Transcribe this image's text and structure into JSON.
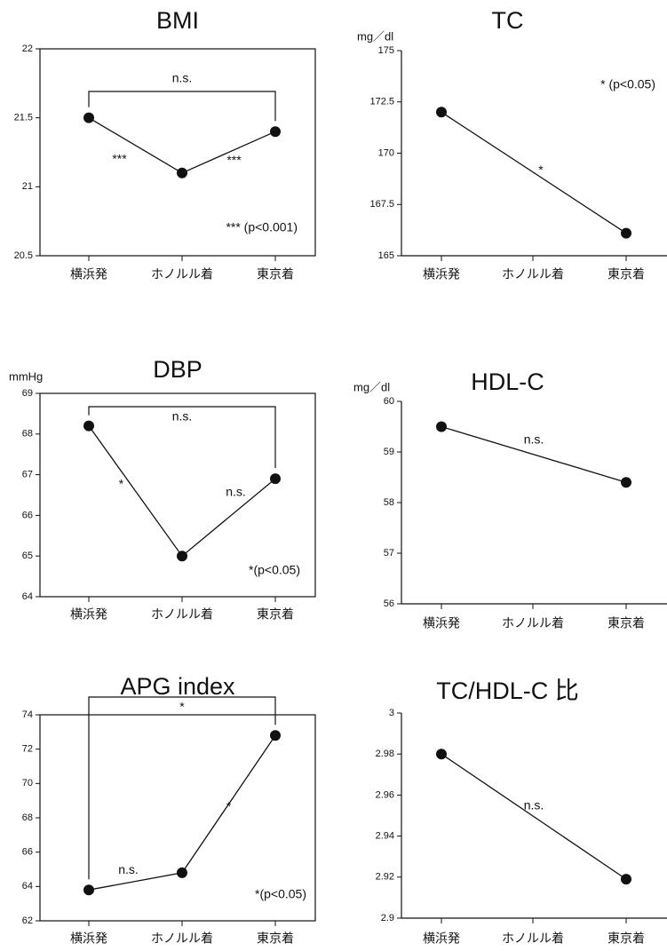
{
  "chart_data": [
    {
      "type": "line",
      "title": "BMI",
      "categories": [
        "横浜発",
        "ホノルル着",
        "東京着"
      ],
      "values": [
        21.5,
        21.1,
        21.4
      ],
      "ylim": [
        20.5,
        22
      ],
      "yticks": [
        20.5,
        21,
        21.5,
        22
      ],
      "color": "#111111",
      "bracket_label": "n.s.",
      "segment_labels": [
        "***",
        "***"
      ],
      "note": "*** (p<0.001)"
    },
    {
      "type": "line",
      "title": "TC",
      "y_label": "mg／dl",
      "categories": [
        "横浜発",
        "ホノルル着",
        "東京着"
      ],
      "values": [
        172,
        null,
        166.1
      ],
      "connect_gaps": true,
      "ylim": [
        165,
        175
      ],
      "yticks": [
        165,
        167.5,
        170,
        172.5,
        175
      ],
      "color": "#111111",
      "segment_labels": [
        "*"
      ],
      "note": "* (p<0.05)"
    },
    {
      "type": "line",
      "title": "DBP",
      "y_label": "mmHg",
      "categories": [
        "横浜発",
        "ホノルル着",
        "東京着"
      ],
      "values": [
        68.2,
        65,
        66.9
      ],
      "ylim": [
        64,
        69
      ],
      "yticks": [
        64,
        65,
        66,
        67,
        68,
        69
      ],
      "color": "#111111",
      "bracket_label": "n.s.",
      "segment_labels": [
        "*",
        "n.s."
      ],
      "note": "*(p<0.05)"
    },
    {
      "type": "line",
      "title": "HDL-C",
      "y_label": "mg／dl",
      "categories": [
        "横浜発",
        "ホノルル着",
        "東京着"
      ],
      "values": [
        59.5,
        null,
        58.4
      ],
      "connect_gaps": true,
      "ylim": [
        56,
        60
      ],
      "yticks": [
        56,
        57,
        58,
        59,
        60
      ],
      "color": "#111111",
      "segment_labels": [
        "n.s."
      ]
    },
    {
      "type": "line",
      "title": "APG index",
      "categories": [
        "横浜発",
        "ホノルル着",
        "東京着"
      ],
      "values": [
        63.8,
        64.8,
        72.8
      ],
      "ylim": [
        62,
        74
      ],
      "yticks": [
        62,
        64,
        66,
        68,
        70,
        72,
        74
      ],
      "color": "#111111",
      "bracket_label": "*",
      "segment_labels": [
        "n.s.",
        "*"
      ],
      "note": "*(p<0.05)"
    },
    {
      "type": "line",
      "title": "TC/HDL-C 比",
      "categories": [
        "横浜発",
        "ホノルル着",
        "東京着"
      ],
      "values": [
        2.98,
        null,
        2.919
      ],
      "connect_gaps": true,
      "ylim": [
        2.9,
        3
      ],
      "yticks": [
        2.9,
        2.92,
        2.94,
        2.96,
        2.98,
        3
      ],
      "color": "#111111",
      "segment_labels": [
        "n.s."
      ]
    }
  ]
}
